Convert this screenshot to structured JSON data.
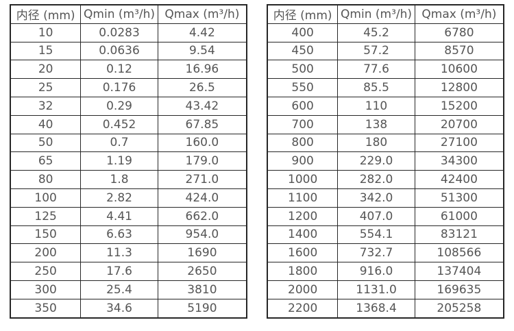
{
  "colors": {
    "background": "#ffffff",
    "text": "#555555",
    "border": "#262626"
  },
  "tables": [
    {
      "name": "diameter-flow-table-small",
      "headers": [
        "内径 (mm)",
        "Qmin (m³/h)",
        "Qmax (m³/h)"
      ],
      "rows": [
        [
          "10",
          "0.0283",
          "4.42"
        ],
        [
          "15",
          "0.0636",
          "9.54"
        ],
        [
          "20",
          "0.12",
          "16.96"
        ],
        [
          "25",
          "0.176",
          "26.5"
        ],
        [
          "32",
          "0.29",
          "43.42"
        ],
        [
          "40",
          "0.452",
          "67.85"
        ],
        [
          "50",
          "0.7",
          "160.0"
        ],
        [
          "65",
          "1.19",
          "179.0"
        ],
        [
          "80",
          "1.8",
          "271.0"
        ],
        [
          "100",
          "2.82",
          "424.0"
        ],
        [
          "125",
          "4.41",
          "662.0"
        ],
        [
          "150",
          "6.63",
          "954.0"
        ],
        [
          "200",
          "11.3",
          "1690"
        ],
        [
          "250",
          "17.6",
          "2650"
        ],
        [
          "300",
          "25.4",
          "3810"
        ],
        [
          "350",
          "34.6",
          "5190"
        ]
      ]
    },
    {
      "name": "diameter-flow-table-large",
      "headers": [
        "内径 (mm)",
        "Qmin (m³/h)",
        "Qmax (m³/h)"
      ],
      "rows": [
        [
          "400",
          "45.2",
          "6780"
        ],
        [
          "450",
          "57.2",
          "8570"
        ],
        [
          "500",
          "77.6",
          "10600"
        ],
        [
          "550",
          "85.5",
          "12800"
        ],
        [
          "600",
          "110",
          "15200"
        ],
        [
          "700",
          "138",
          "20700"
        ],
        [
          "800",
          "180",
          "27100"
        ],
        [
          "900",
          "229.0",
          "34300"
        ],
        [
          "1000",
          "282.0",
          "42400"
        ],
        [
          "1100",
          "342.0",
          "51300"
        ],
        [
          "1200",
          "407.0",
          "61000"
        ],
        [
          "1400",
          "554.1",
          "83121"
        ],
        [
          "1600",
          "732.7",
          "108566"
        ],
        [
          "1800",
          "916.0",
          "137404"
        ],
        [
          "2000",
          "1131.0",
          "169635"
        ],
        [
          "2200",
          "1368.4",
          "205258"
        ]
      ]
    }
  ]
}
